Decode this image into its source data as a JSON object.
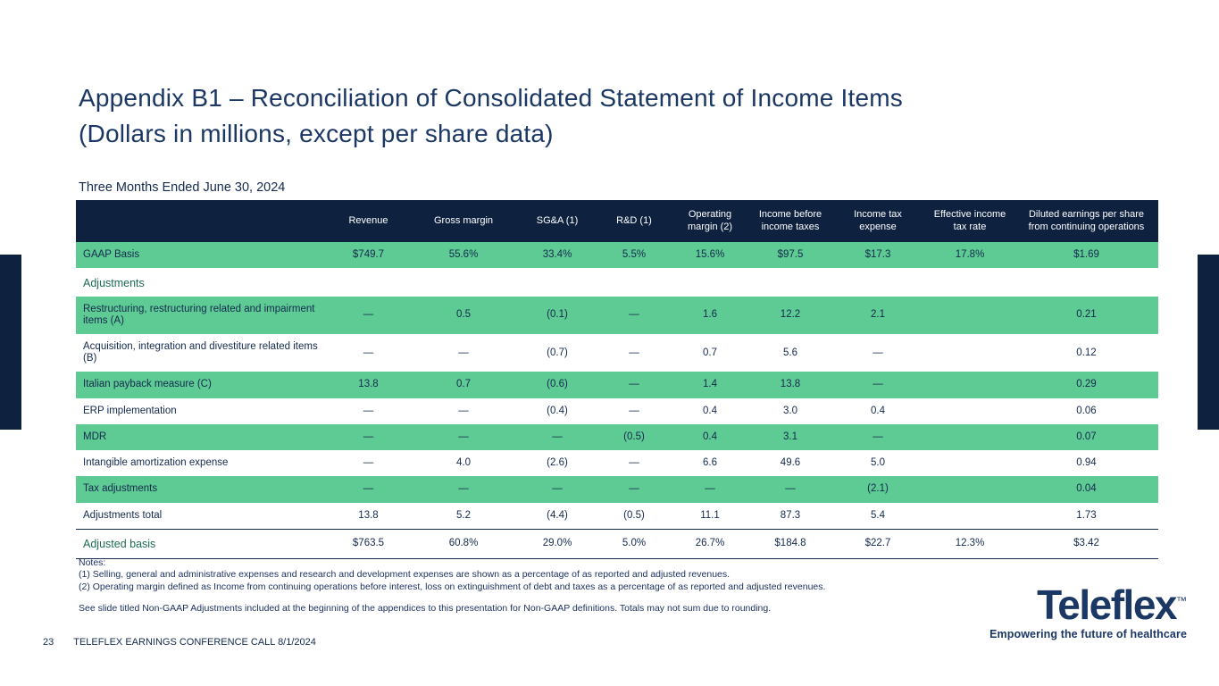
{
  "slide": {
    "title_line1": "Appendix B1 – Reconciliation of Consolidated Statement of Income Items",
    "title_line2": "(Dollars in millions, except per share data)",
    "table_caption": "Three Months Ended June 30, 2024"
  },
  "table": {
    "columns": [
      "",
      "Revenue",
      "Gross margin",
      "SG&A (1)",
      "R&D (1)",
      "Operating margin (2)",
      "Income before income taxes",
      "Income tax expense",
      "Effective income tax rate",
      "Diluted earnings per share from continuing operations"
    ],
    "rows": [
      {
        "label": "GAAP Basis",
        "style": "highlight",
        "values": [
          "$749.7",
          "55.6%",
          "33.4%",
          "5.5%",
          "15.6%",
          "$97.5",
          "$17.3",
          "17.8%",
          "$1.69"
        ]
      },
      {
        "label": "Adjustments",
        "style": "section",
        "values": [
          "",
          "",
          "",
          "",
          "",
          "",
          "",
          "",
          ""
        ]
      },
      {
        "label": "Restructuring, restructuring related and impairment items (A)",
        "style": "highlight",
        "values": [
          "—",
          "0.5",
          "(0.1)",
          "—",
          "1.6",
          "12.2",
          "2.1",
          "",
          "0.21"
        ]
      },
      {
        "label": "Acquisition, integration and divestiture related items (B)",
        "style": "plain",
        "values": [
          "—",
          "—",
          "(0.7)",
          "—",
          "0.7",
          "5.6",
          "—",
          "",
          "0.12"
        ]
      },
      {
        "label": "Italian payback measure (C)",
        "style": "highlight",
        "values": [
          "13.8",
          "0.7",
          "(0.6)",
          "—",
          "1.4",
          "13.8",
          "—",
          "",
          "0.29"
        ]
      },
      {
        "label": "ERP implementation",
        "style": "plain",
        "values": [
          "—",
          "—",
          "(0.4)",
          "—",
          "0.4",
          "3.0",
          "0.4",
          "",
          "0.06"
        ]
      },
      {
        "label": "MDR",
        "style": "highlight",
        "values": [
          "—",
          "—",
          "—",
          "(0.5)",
          "0.4",
          "3.1",
          "—",
          "",
          "0.07"
        ]
      },
      {
        "label": "Intangible amortization expense",
        "style": "plain",
        "values": [
          "—",
          "4.0",
          "(2.6)",
          "—",
          "6.6",
          "49.6",
          "5.0",
          "",
          "0.94"
        ]
      },
      {
        "label": "Tax adjustments",
        "style": "highlight",
        "values": [
          "—",
          "—",
          "—",
          "—",
          "—",
          "—",
          "(2.1)",
          "",
          "0.04"
        ]
      },
      {
        "label": "Adjustments total",
        "style": "plain",
        "values": [
          "13.8",
          "5.2",
          "(4.4)",
          "(0.5)",
          "11.1",
          "87.3",
          "5.4",
          "",
          "1.73"
        ]
      },
      {
        "label": "Adjusted basis",
        "style": "adjusted",
        "values": [
          "$763.5",
          "60.8%",
          "29.0%",
          "5.0%",
          "26.7%",
          "$184.8",
          "$22.7",
          "12.3%",
          "$3.42"
        ]
      }
    ]
  },
  "notes": {
    "heading": "Notes:",
    "note1": "(1) Selling, general and administrative expenses and research and development expenses are shown as a percentage of as reported and adjusted revenues.",
    "note2": "(2) Operating margin defined as Income from continuing operations before interest, loss on extinguishment of debt and taxes as a percentage of as reported and adjusted revenues.",
    "see": "See slide titled Non-GAAP Adjustments included at the beginning of the appendices to this presentation for Non-GAAP definitions. Totals may not sum due to rounding."
  },
  "footer": {
    "page_number": "23",
    "text": "TELEFLEX EARNINGS CONFERENCE CALL 8/1/2024"
  },
  "logo": {
    "wordmark": "Teleflex",
    "tm": "™",
    "tagline": "Empowering the future of healthcare"
  },
  "colors": {
    "header_navy": "#0e2240",
    "title_navy": "#1b3764",
    "highlight_green": "#5ecb94",
    "section_teal": "#1c6b54",
    "body_text_navy": "#14294e"
  }
}
